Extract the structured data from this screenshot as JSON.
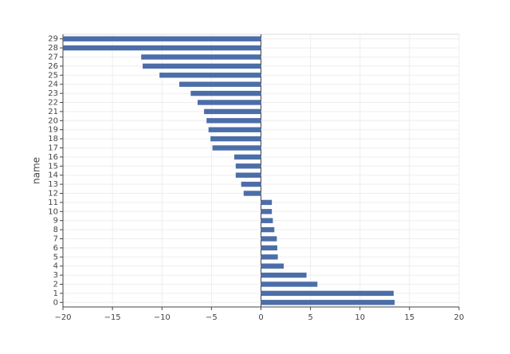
{
  "chart_data": {
    "type": "bar",
    "orientation": "horizontal",
    "y_label": "name",
    "categories": [
      "0",
      "1",
      "2",
      "3",
      "4",
      "5",
      "6",
      "7",
      "8",
      "9",
      "10",
      "11",
      "12",
      "13",
      "14",
      "15",
      "16",
      "17",
      "18",
      "19",
      "20",
      "21",
      "22",
      "23",
      "24",
      "25",
      "26",
      "27",
      "28",
      "29"
    ],
    "values": [
      13.5,
      13.4,
      5.7,
      4.6,
      2.3,
      1.7,
      1.65,
      1.6,
      1.35,
      1.2,
      1.1,
      1.1,
      -1.75,
      -2.0,
      -2.55,
      -2.55,
      -2.7,
      -4.9,
      -5.1,
      -5.3,
      -5.5,
      -5.75,
      -6.4,
      -7.1,
      -8.25,
      -10.25,
      -11.95,
      -12.1,
      -20,
      -20
    ],
    "color": "#4c6ea8",
    "xlim": [
      -20,
      20
    ],
    "xticks": [
      {
        "value": -20,
        "label": "−20"
      },
      {
        "value": -15,
        "label": "−15"
      },
      {
        "value": -10,
        "label": "−10"
      },
      {
        "value": -5,
        "label": "−5"
      },
      0,
      5,
      10,
      15,
      20
    ],
    "grid": true
  }
}
